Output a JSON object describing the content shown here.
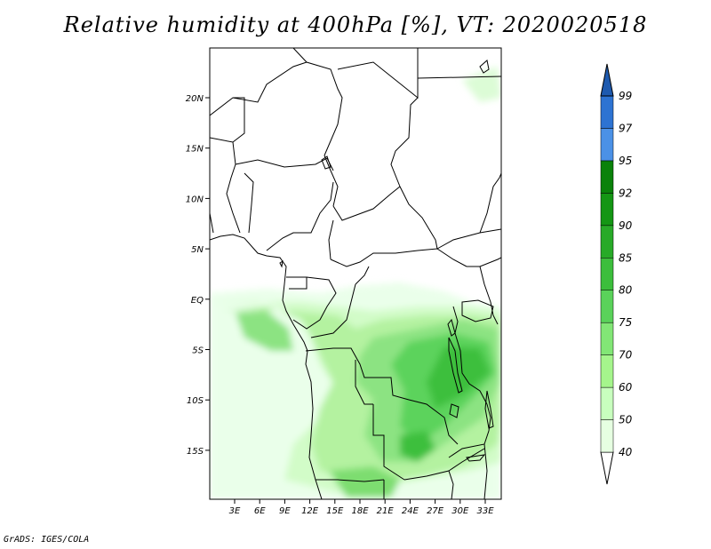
{
  "title": "Relative humidity at 400hPa [%], VT: 2020020518",
  "credit": "GrADS: IGES/COLA",
  "map": {
    "lon_labels": [
      "3E",
      "6E",
      "9E",
      "12E",
      "15E",
      "18E",
      "21E",
      "24E",
      "27E",
      "30E",
      "33E"
    ],
    "lat_labels": [
      "20N",
      "15N",
      "10N",
      "5N",
      "EQ",
      "5S",
      "10S",
      "15S"
    ]
  },
  "colorbar": {
    "levels": [
      "40",
      "50",
      "60",
      "70",
      "75",
      "80",
      "85",
      "90",
      "92",
      "95",
      "97",
      "99"
    ],
    "colors": [
      "#ffffff",
      "#e6ffe1",
      "#c8ffbe",
      "#a5f58c",
      "#82e676",
      "#5ad25a",
      "#3cbe3c",
      "#28aa28",
      "#149614",
      "#0a820a",
      "#4b91e6",
      "#2d73d2",
      "#1e5aaf"
    ]
  },
  "colors": {
    "land_border": "#000000",
    "frame": "#000000"
  }
}
